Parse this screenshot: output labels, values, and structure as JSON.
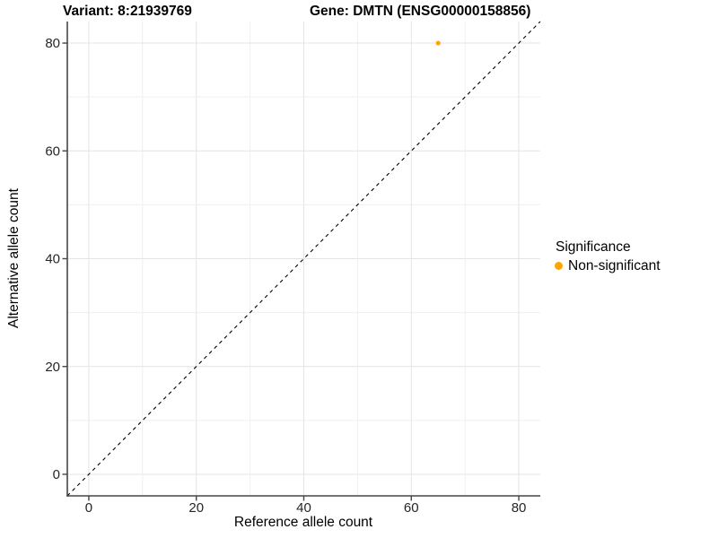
{
  "chart_data": {
    "type": "scatter",
    "title_left": "Variant: 8:21939769",
    "title_right": "Gene: DMTN (ENSG00000158856)",
    "xlabel": "Reference allele count",
    "ylabel": "Alternative allele count",
    "xlim": [
      -4,
      84
    ],
    "ylim": [
      -4,
      84
    ],
    "x_ticks": [
      0,
      20,
      40,
      60,
      80
    ],
    "y_ticks": [
      0,
      20,
      40,
      60,
      80
    ],
    "grid": true,
    "grid_step": 10,
    "reference_line": {
      "type": "identity-abline",
      "style": "dashed",
      "color": "#000000"
    },
    "series": [
      {
        "name": "Non-significant",
        "color": "#FFA500",
        "points": [
          {
            "x": 65,
            "y": 80
          }
        ]
      }
    ],
    "legend": {
      "title": "Significance",
      "position": "right",
      "items": [
        {
          "label": "Non-significant",
          "color": "#FFA500"
        }
      ]
    }
  },
  "colors": {
    "background": "#ffffff",
    "axis_line": "#464646",
    "grid_major": "#e4e4e4",
    "grid_minor": "#efefef",
    "tick_label": "#262626",
    "point_orange": "#FFA500"
  }
}
